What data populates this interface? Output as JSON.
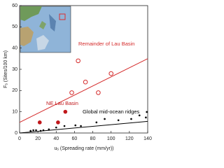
{
  "chart_data": {
    "type": "scatter",
    "x_label": {
      "symbol": "u",
      "subscript": "s",
      "text": "(Spreading rate (mm/yr))"
    },
    "y_label": {
      "symbol": "F",
      "subscript": "s",
      "text": "(Sites/100 km)"
    },
    "xlim": [
      0,
      140
    ],
    "ylim": [
      0,
      60
    ],
    "xticks": [
      0,
      20,
      40,
      60,
      80,
      100,
      120,
      140
    ],
    "yticks": [
      0,
      10,
      20,
      30,
      40,
      50,
      60
    ],
    "series": [
      {
        "name": "Remainder of Lau Basin",
        "color": "#d42a2a",
        "marker": "open",
        "x": [
          64,
          57,
          72,
          86,
          100
        ],
        "values": [
          34,
          19,
          24,
          19,
          28
        ]
      },
      {
        "name": "NE Lau Basin",
        "color": "#c0171b",
        "marker": "filled",
        "x": [
          22,
          42,
          50
        ],
        "values": [
          5,
          5,
          10
        ]
      },
      {
        "name": "Global mid-ocean ridges",
        "color": "#000000",
        "marker": "dot",
        "x": [
          12,
          15,
          18,
          23,
          26,
          32,
          40,
          49,
          61,
          67,
          84,
          93,
          108,
          122,
          131,
          138,
          139
        ],
        "values": [
          1,
          1.3,
          1.3,
          1,
          1.3,
          1.7,
          2.6,
          3.3,
          3.6,
          3.3,
          5,
          6.6,
          6,
          6.6,
          8.3,
          7.3,
          9.9
        ]
      }
    ],
    "lines": [
      {
        "color": "#d42a2a",
        "x": [
          0,
          140
        ],
        "values": [
          5,
          35
        ]
      },
      {
        "color": "#000000",
        "x": [
          0,
          140
        ],
        "values": [
          0,
          5.5
        ]
      }
    ]
  }
}
